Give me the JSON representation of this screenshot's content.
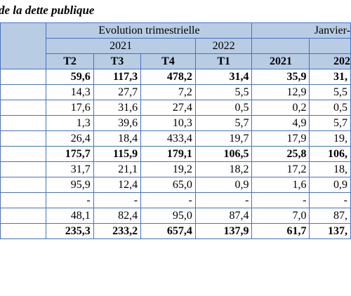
{
  "title": "de la dette publique",
  "header": {
    "group_quarterly": "Evolution trimestrielle",
    "group_january": "Janvier-",
    "year_2021": "2021",
    "year_2022": "2022",
    "quarters": [
      "T2",
      "T3",
      "T4",
      "T1"
    ],
    "jan_years": [
      "2021",
      "202"
    ]
  },
  "rows": [
    {
      "bold": true,
      "values": [
        "59,6",
        "117,3",
        "478,2",
        "31,4",
        "35,9",
        "31,"
      ]
    },
    {
      "bold": false,
      "values": [
        "14,3",
        "27,7",
        "7,2",
        "5,5",
        "12,9",
        "5,5"
      ]
    },
    {
      "bold": false,
      "values": [
        "17,6",
        "31,6",
        "27,4",
        "0,5",
        "0,2",
        "0,5"
      ]
    },
    {
      "bold": false,
      "values": [
        "1,3",
        "39,6",
        "10,3",
        "5,7",
        "4,9",
        "5,7"
      ]
    },
    {
      "bold": false,
      "values": [
        "26,4",
        "18,4",
        "433,4",
        "19,7",
        "17,9",
        "19,"
      ]
    },
    {
      "bold": true,
      "values": [
        "175,7",
        "115,9",
        "179,1",
        "106,5",
        "25,8",
        "106,"
      ]
    },
    {
      "bold": false,
      "values": [
        "31,7",
        "21,1",
        "19,2",
        "18,2",
        "17,2",
        "18,"
      ]
    },
    {
      "bold": false,
      "values": [
        "95,9",
        "12,4",
        "65,0",
        "0,9",
        "1,6",
        "0,9"
      ]
    },
    {
      "bold": false,
      "values": [
        "-",
        "-",
        "-",
        "-",
        "-",
        "-"
      ]
    },
    {
      "bold": false,
      "values": [
        "48,1",
        "82,4",
        "95,0",
        "87,4",
        "7,0",
        "87,"
      ]
    },
    {
      "bold": true,
      "values": [
        "235,3",
        "233,2",
        "657,4",
        "137,9",
        "61,7",
        "137,"
      ]
    }
  ]
}
